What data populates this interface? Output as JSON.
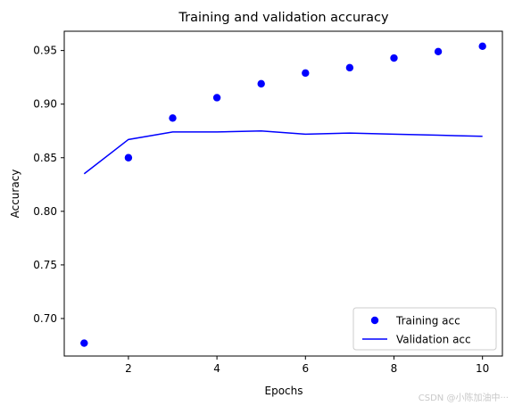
{
  "chart_data": {
    "type": "line",
    "title": "Training and validation accuracy",
    "xlabel": "Epochs",
    "ylabel": "Accuracy",
    "xlim": [
      0.55,
      10.45
    ],
    "ylim": [
      0.665,
      0.968
    ],
    "xticks": [
      2,
      4,
      6,
      8,
      10
    ],
    "yticks": [
      0.7,
      0.75,
      0.8,
      0.85,
      0.9,
      0.95
    ],
    "ytick_labels": [
      "0.70",
      "0.75",
      "0.80",
      "0.85",
      "0.90",
      "0.95"
    ],
    "grid": false,
    "legend_position": "lower-right",
    "series": [
      {
        "name": "Training acc",
        "style": "scatter",
        "color": "#0000ff",
        "x": [
          1,
          2,
          3,
          4,
          5,
          6,
          7,
          8,
          9,
          10
        ],
        "values": [
          0.677,
          0.85,
          0.887,
          0.906,
          0.919,
          0.929,
          0.934,
          0.943,
          0.949,
          0.954
        ]
      },
      {
        "name": "Validation acc",
        "style": "line",
        "color": "#0000ff",
        "x": [
          1,
          2,
          3,
          4,
          5,
          6,
          7,
          8,
          9,
          10
        ],
        "values": [
          0.835,
          0.867,
          0.874,
          0.874,
          0.875,
          0.872,
          0.873,
          0.872,
          0.871,
          0.87
        ]
      }
    ]
  },
  "watermark": "CSDN @小陈加油中···"
}
